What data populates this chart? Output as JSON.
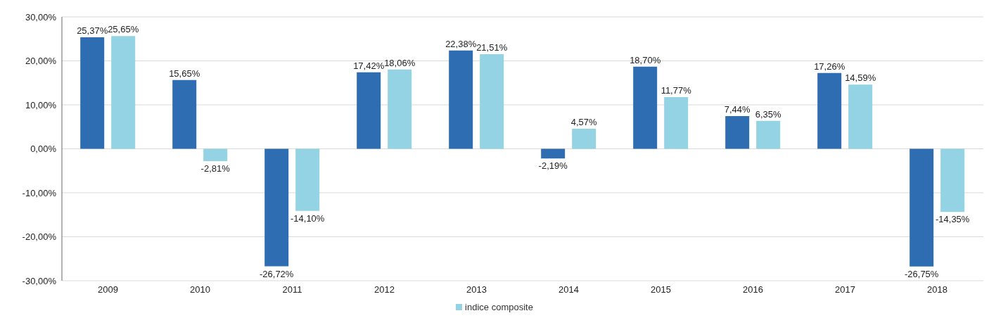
{
  "chart_data": {
    "type": "bar",
    "categories": [
      "2009",
      "2010",
      "2011",
      "2012",
      "2013",
      "2014",
      "2015",
      "2016",
      "2017",
      "2018"
    ],
    "series": [
      {
        "color": "#2f6db3",
        "values": [
          25.37,
          15.65,
          -26.72,
          17.42,
          22.38,
          -2.19,
          18.7,
          7.44,
          17.26,
          -26.75
        ],
        "value_labels": [
          "25,37%",
          "15,65%",
          "-26,72%",
          "17,42%",
          "22,38%",
          "-2,19%",
          "18,70%",
          "7,44%",
          "17,26%",
          "-26,75%"
        ]
      },
      {
        "name": "indice composite",
        "color": "#93d3e3",
        "values": [
          25.65,
          -2.81,
          -14.1,
          18.06,
          21.51,
          4.57,
          11.77,
          6.35,
          14.59,
          -14.35
        ],
        "value_labels": [
          "25,65%",
          "-2,81%",
          "-14,10%",
          "18,06%",
          "21,51%",
          "4,57%",
          "11,77%",
          "6,35%",
          "14,59%",
          "-14,35%"
        ]
      }
    ],
    "ylim": [
      -30,
      30
    ],
    "yticks": [
      {
        "value": -30,
        "label": "-30,00%"
      },
      {
        "value": -20,
        "label": "-20,00%"
      },
      {
        "value": -10,
        "label": "-10,00%"
      },
      {
        "value": 0,
        "label": "0,00%"
      },
      {
        "value": 10,
        "label": "10,00%"
      },
      {
        "value": 20,
        "label": "20,00%"
      },
      {
        "value": 30,
        "label": "30,00%"
      }
    ],
    "grid": "y",
    "legend": "bottom"
  }
}
